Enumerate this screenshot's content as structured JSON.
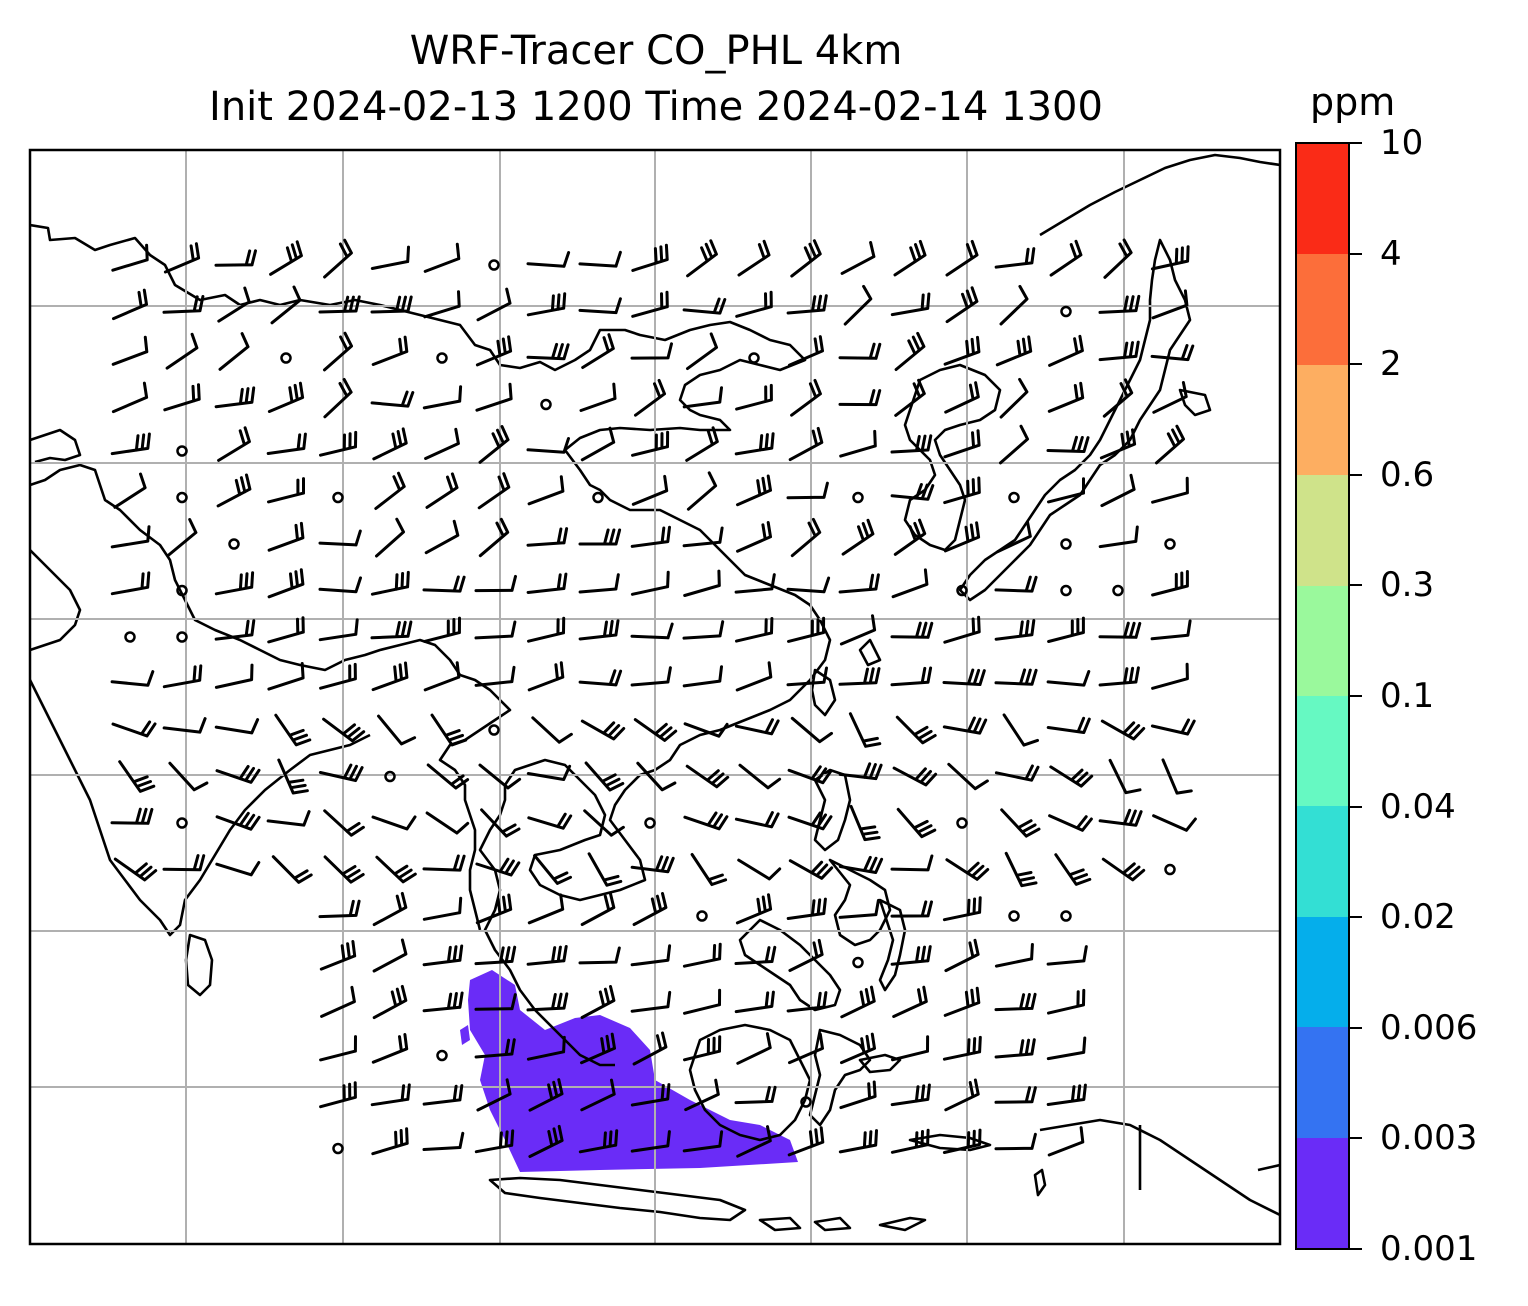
{
  "title": {
    "line1": "WRF-Tracer CO_PHL 4km",
    "line2": "Init 2024-02-13 1200 Time 2024-02-14 1300"
  },
  "colorbar": {
    "unit": "ppm",
    "levels": [
      "0.001",
      "0.003",
      "0.006",
      "0.02",
      "0.04",
      "0.1",
      "0.3",
      "0.6",
      "2",
      "4",
      "10"
    ],
    "colors": [
      "#6a2cf7",
      "#3473f2",
      "#05aeeb",
      "#33dfd4",
      "#66f9c2",
      "#9af99c",
      "#cfe38a",
      "#fdae61",
      "#fc6e3a",
      "#fa2b17"
    ]
  },
  "map": {
    "tracer_color": "#6a2cf7",
    "coastline_color": "#000000",
    "gridline_color": "#b0b0b0"
  }
}
